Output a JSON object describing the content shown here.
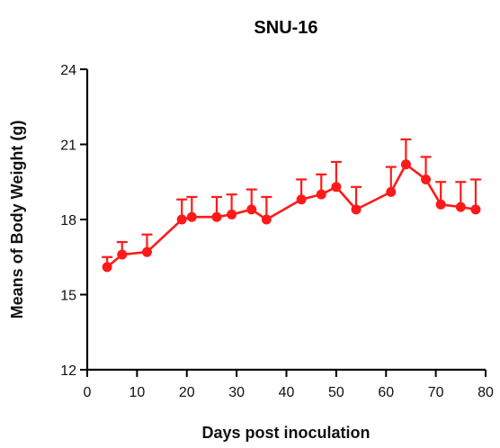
{
  "chart_data": {
    "type": "line",
    "title": "SNU-16",
    "xlabel": "Days post inoculation",
    "ylabel": "Means of Body Weight (g)",
    "xlim": [
      0,
      80
    ],
    "ylim": [
      12,
      24
    ],
    "xticks": [
      "0",
      "10",
      "20",
      "30",
      "40",
      "50",
      "60",
      "70",
      "80"
    ],
    "yticks": [
      "12",
      "15",
      "18",
      "21",
      "24"
    ],
    "grid": false,
    "series": [
      {
        "color": "#ff1a1a",
        "x": [
          4,
          7,
          12,
          19,
          21,
          26,
          29,
          33,
          36,
          43,
          47,
          50,
          54,
          61,
          64,
          68,
          71,
          75,
          78
        ],
        "y": [
          16.1,
          16.6,
          16.7,
          18.0,
          18.1,
          18.1,
          18.2,
          18.4,
          18.0,
          18.8,
          19.0,
          19.3,
          18.4,
          19.1,
          20.2,
          19.6,
          18.6,
          18.5,
          18.4
        ],
        "error_upper": [
          0.4,
          0.5,
          0.7,
          0.8,
          0.8,
          0.8,
          0.8,
          0.8,
          0.9,
          0.8,
          0.8,
          1.0,
          0.9,
          1.0,
          1.0,
          0.9,
          0.9,
          1.0,
          1.2
        ]
      }
    ]
  }
}
